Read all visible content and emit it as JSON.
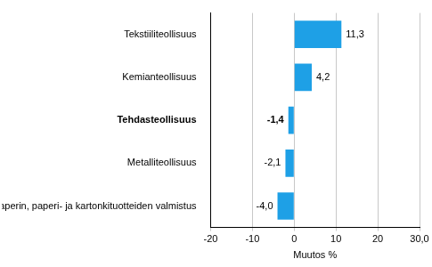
{
  "chart_data": {
    "type": "bar",
    "orientation": "horizontal",
    "categories": [
      "Tekstiiliteollisuus",
      "Kemianteollisuus",
      "Tehdasteollisuus",
      "Metalliteollisuus",
      "Paperin, paperi- ja kartonkituotteiden valmistus"
    ],
    "values": [
      11.3,
      4.2,
      -1.4,
      -2.1,
      -4.0
    ],
    "value_labels": [
      "11,3",
      "4,2",
      "-1,4",
      "-2,1",
      "-4,0"
    ],
    "data_labels": true,
    "color": "#1ea0e6",
    "x_label": "Muutos %",
    "xlim": [
      -20,
      30
    ],
    "xticks": [
      -20,
      -10,
      0,
      10,
      20,
      {
        "value": 30,
        "label": "30,0"
      }
    ],
    "grid": true
  }
}
